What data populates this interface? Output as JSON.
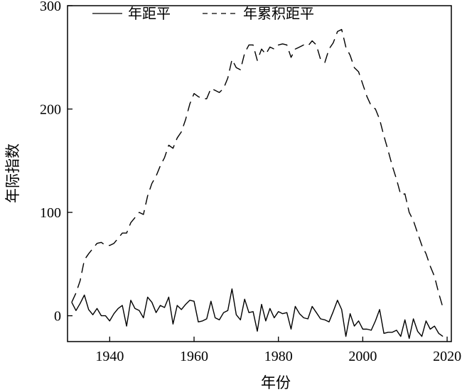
{
  "chart_data": {
    "type": "line",
    "title": "",
    "xlabel": "年份",
    "ylabel": "年际指数",
    "xlim": [
      1930,
      2021
    ],
    "ylim": [
      -25,
      300
    ],
    "xticks": [
      1940,
      1960,
      1980,
      2000,
      2020
    ],
    "yticks": [
      0,
      100,
      200,
      300
    ],
    "grid": false,
    "legend_position": "top",
    "series": [
      {
        "name": "年距平",
        "style": "solid",
        "x": [
          1931,
          1932,
          1933,
          1934,
          1935,
          1936,
          1937,
          1938,
          1939,
          1940,
          1941,
          1942,
          1943,
          1944,
          1945,
          1946,
          1947,
          1948,
          1949,
          1950,
          1951,
          1952,
          1953,
          1954,
          1955,
          1956,
          1957,
          1958,
          1959,
          1960,
          1961,
          1962,
          1963,
          1964,
          1965,
          1966,
          1967,
          1968,
          1969,
          1970,
          1971,
          1972,
          1973,
          1974,
          1975,
          1976,
          1977,
          1978,
          1979,
          1980,
          1981,
          1982,
          1983,
          1984,
          1985,
          1986,
          1987,
          1988,
          1989,
          1990,
          1991,
          1992,
          1993,
          1994,
          1995,
          1996,
          1997,
          1998,
          1999,
          2000,
          2001,
          2002,
          2003,
          2004,
          2005,
          2006,
          2007,
          2008,
          2009,
          2010,
          2011,
          2012,
          2013,
          2014,
          2015,
          2016,
          2017,
          2018,
          2019
        ],
        "values": [
          13,
          5,
          12,
          20,
          6,
          1,
          7,
          0,
          0,
          -5,
          2,
          7,
          10,
          -10,
          15,
          7,
          5,
          -2,
          18,
          13,
          3,
          10,
          8,
          18,
          -8,
          10,
          6,
          11,
          15,
          14,
          -6,
          -5,
          -3,
          14,
          -2,
          -4,
          3,
          5,
          26,
          1,
          -4,
          16,
          3,
          4,
          -15,
          11,
          -5,
          7,
          -2,
          4,
          2,
          3,
          -13,
          9,
          2,
          -2,
          -3,
          9,
          3,
          -3,
          -4,
          -6,
          4,
          15,
          6,
          -20,
          2,
          -10,
          -5,
          -13,
          -13,
          -14,
          -5,
          6,
          -17,
          -16,
          -16,
          -14,
          -20,
          -4,
          -22,
          -3,
          -15,
          -20,
          -5,
          -13,
          -10,
          -17,
          -20
        ]
      },
      {
        "name": "年累积距平",
        "style": "dashed",
        "x": [
          1931,
          1932,
          1933,
          1934,
          1935,
          1936,
          1937,
          1938,
          1939,
          1940,
          1941,
          1942,
          1943,
          1944,
          1945,
          1946,
          1947,
          1948,
          1949,
          1950,
          1951,
          1952,
          1953,
          1954,
          1955,
          1956,
          1957,
          1958,
          1959,
          1960,
          1961,
          1962,
          1963,
          1964,
          1965,
          1966,
          1967,
          1968,
          1969,
          1970,
          1971,
          1972,
          1973,
          1974,
          1975,
          1976,
          1977,
          1978,
          1979,
          1980,
          1981,
          1982,
          1983,
          1984,
          1985,
          1986,
          1987,
          1988,
          1989,
          1990,
          1991,
          1992,
          1993,
          1994,
          1995,
          1996,
          1997,
          1998,
          1999,
          2000,
          2001,
          2002,
          2003,
          2004,
          2005,
          2006,
          2007,
          2008,
          2009,
          2010,
          2011,
          2012,
          2013,
          2014,
          2015,
          2016,
          2017,
          2018,
          2019
        ],
        "values": [
          13,
          22,
          34,
          54,
          60,
          65,
          70,
          71,
          68,
          68,
          70,
          75,
          80,
          80,
          90,
          95,
          100,
          98,
          116,
          128,
          135,
          145,
          153,
          165,
          162,
          172,
          178,
          190,
          205,
          215,
          212,
          210,
          210,
          220,
          218,
          216,
          220,
          230,
          248,
          240,
          238,
          254,
          262,
          262,
          247,
          258,
          253,
          260,
          258,
          262,
          263,
          262,
          250,
          258,
          260,
          262,
          261,
          266,
          262,
          248,
          245,
          258,
          264,
          275,
          277,
          260,
          252,
          240,
          236,
          224,
          212,
          203,
          200,
          190,
          174,
          160,
          145,
          132,
          117,
          118,
          100,
          92,
          80,
          68,
          60,
          48,
          38,
          22,
          8
        ]
      }
    ]
  }
}
